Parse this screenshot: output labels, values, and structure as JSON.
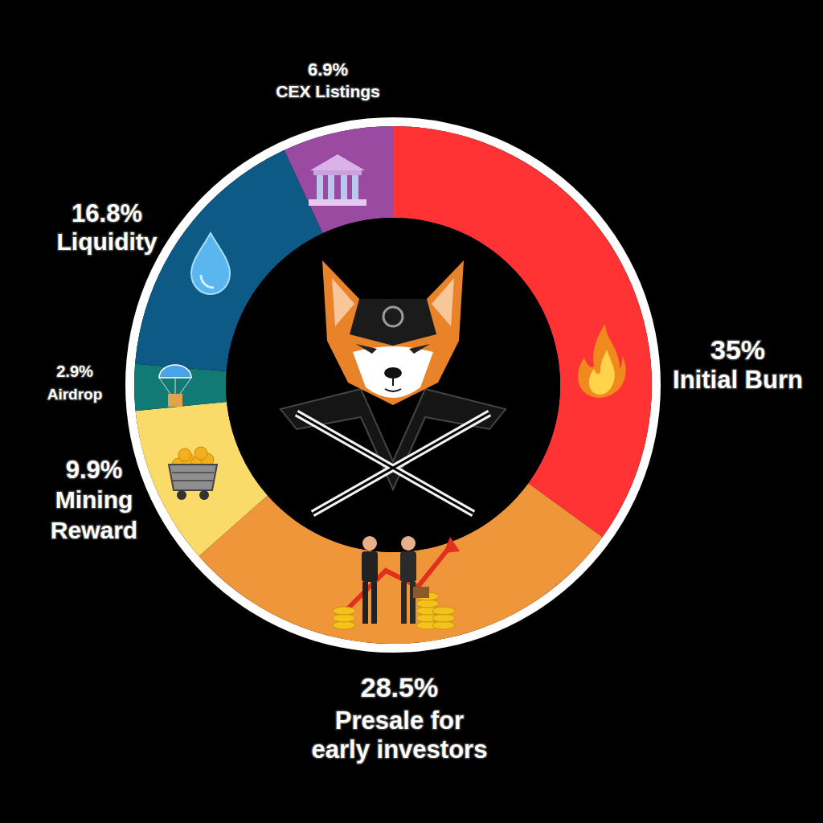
{
  "chart_data": {
    "type": "donut",
    "categories": [
      "Initial Burn",
      "Presale for early investors",
      "Mining Reward",
      "Airdrop",
      "Liquidity",
      "CEX Listings"
    ],
    "values": [
      35,
      28.5,
      9.9,
      2.9,
      16.8,
      6.9
    ],
    "value_labels": [
      "35%",
      "28.5%",
      "9.9%",
      "2.9%",
      "16.8%",
      "6.9%"
    ],
    "colors": [
      "#ff3333",
      "#f0963a",
      "#fadb6a",
      "#127a74",
      "#0d5a86",
      "#9b4aa2"
    ],
    "data_labels": true
  }
}
